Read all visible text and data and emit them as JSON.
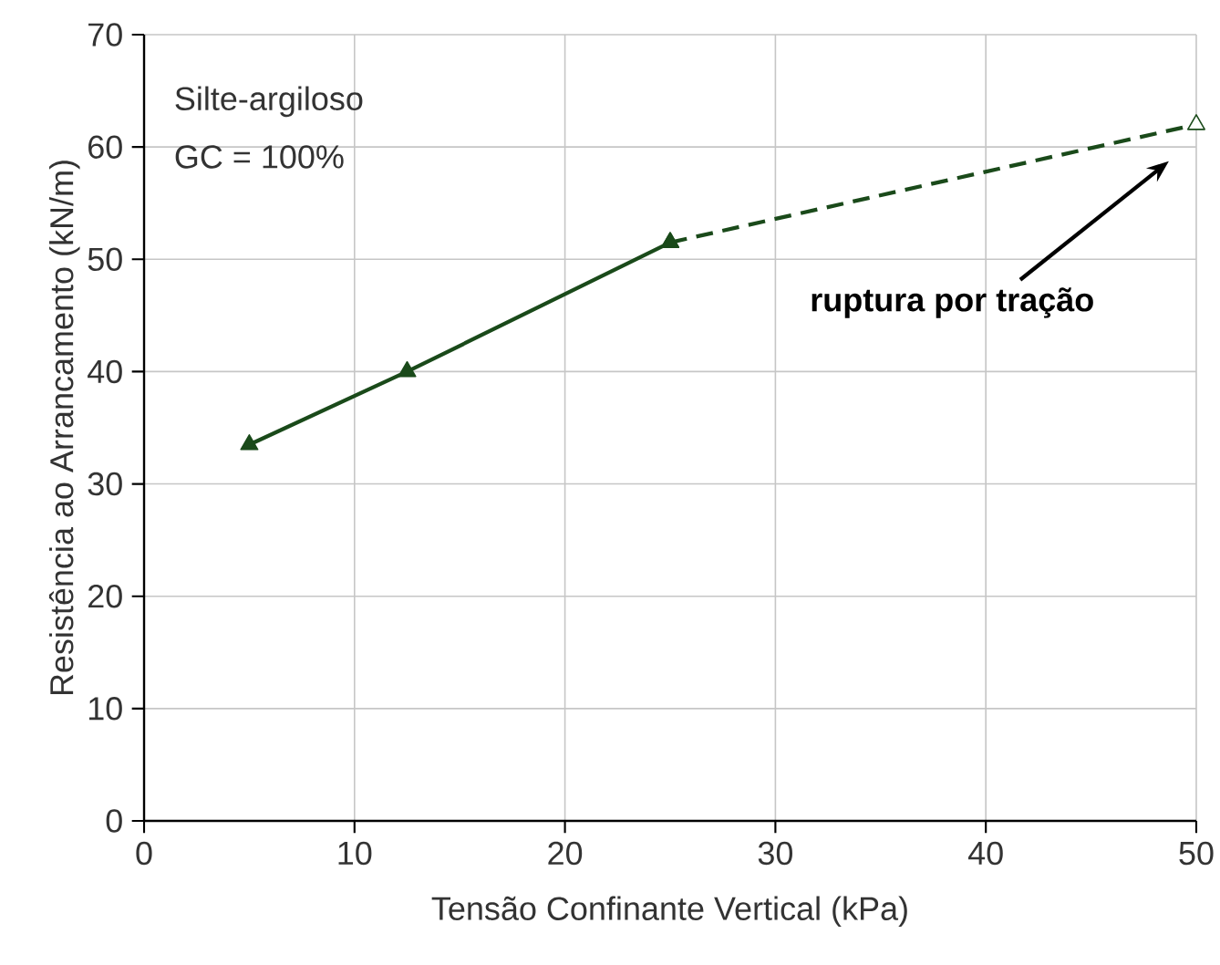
{
  "chart_data": {
    "type": "line",
    "xlabel": "Tensão Confinante Vertical (kPa)",
    "ylabel": "Resistência ao Arrancamento (kN/m)",
    "annotations": [
      "Silte-argiloso",
      "GC = 100%",
      "ruptura por tração"
    ],
    "series": [
      {
        "color": "#1a4a1a",
        "x": [
          5,
          12.5,
          25
        ],
        "values": [
          33.5,
          40,
          51.5
        ],
        "line_style": "solid",
        "marker": "triangle"
      },
      {
        "color": "#1a4a1a",
        "x": [
          25,
          50
        ],
        "values": [
          51.5,
          62
        ],
        "line_style": "dashed",
        "marker": "triangle"
      }
    ],
    "xlim": [
      0,
      50
    ],
    "xticks": [
      0,
      10,
      20,
      30,
      40,
      50
    ],
    "ylim": [
      0,
      70
    ],
    "yticks": [
      0,
      10,
      20,
      30,
      40,
      50,
      60,
      70
    ],
    "grid": true
  }
}
